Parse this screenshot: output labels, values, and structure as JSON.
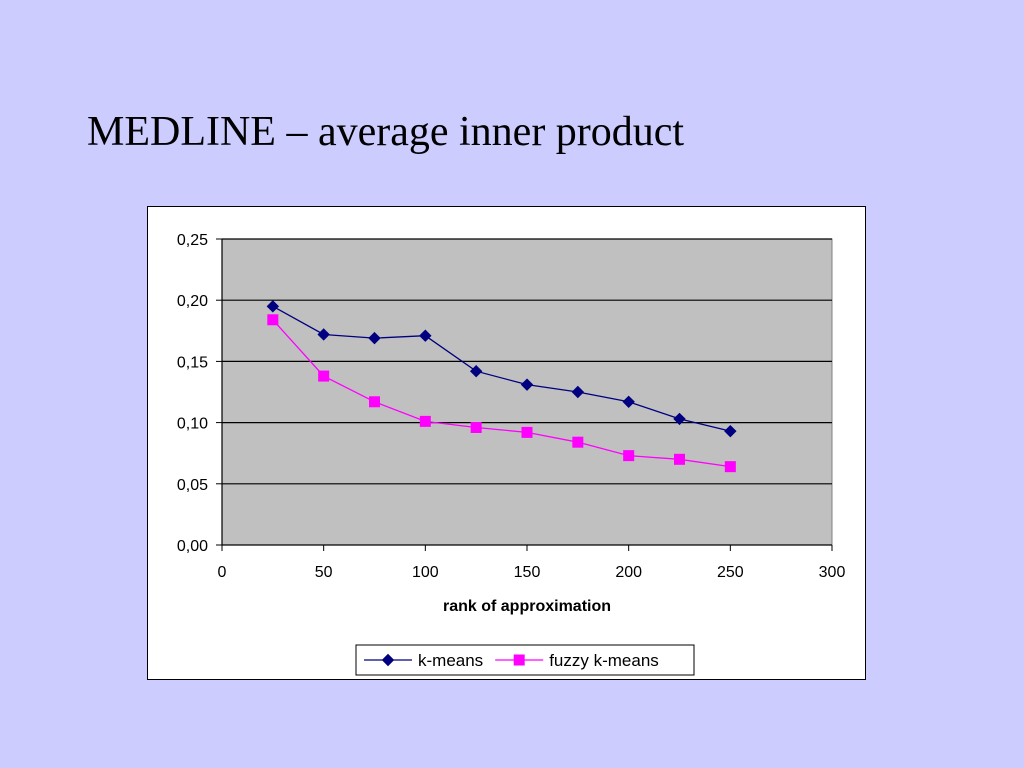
{
  "slide": {
    "title": "MEDLINE – average inner product",
    "background": "#ccccff"
  },
  "chart_data": {
    "type": "line",
    "title": "",
    "xlabel": "rank of approximation",
    "ylabel": "",
    "xlim": [
      0,
      300
    ],
    "ylim": [
      0,
      0.25
    ],
    "xticks": [
      0,
      50,
      100,
      150,
      200,
      250,
      300
    ],
    "xtick_labels": [
      "0",
      "50",
      "100",
      "150",
      "200",
      "250",
      "300"
    ],
    "yticks": [
      0,
      0.05,
      0.1,
      0.15,
      0.2,
      0.25
    ],
    "ytick_labels": [
      "0,00",
      "0,05",
      "0,10",
      "0,15",
      "0,20",
      "0,25"
    ],
    "grid": "horizontal",
    "plot_background": "#c0c0c0",
    "legend_position": "bottom",
    "x": [
      25,
      50,
      75,
      100,
      125,
      150,
      175,
      200,
      225,
      250
    ],
    "series": [
      {
        "name": "k-means",
        "color": "#000080",
        "marker": "diamond",
        "values": [
          0.195,
          0.172,
          0.169,
          0.171,
          0.142,
          0.131,
          0.125,
          0.117,
          0.103,
          0.093
        ]
      },
      {
        "name": "fuzzy k-means",
        "color": "#ff00ff",
        "marker": "square",
        "values": [
          0.184,
          0.138,
          0.117,
          0.101,
          0.096,
          0.092,
          0.084,
          0.073,
          0.07,
          0.064
        ]
      }
    ]
  }
}
